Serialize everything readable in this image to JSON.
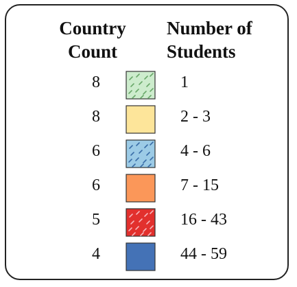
{
  "legend": {
    "header_count": "Country\nCount",
    "header_students": "Number of\nStudents",
    "rows": [
      {
        "count": "8",
        "range": "1",
        "fill": "#cdeccd",
        "pattern": "hatch",
        "hatch_color": "#6aa86a"
      },
      {
        "count": "8",
        "range": "2 - 3",
        "fill": "#fde59a",
        "pattern": "none"
      },
      {
        "count": "6",
        "range": "4 - 6",
        "fill": "#9ccbe6",
        "pattern": "hatch",
        "hatch_color": "#3a6ea8"
      },
      {
        "count": "6",
        "range": "7 - 15",
        "fill": "#fb9759",
        "pattern": "none"
      },
      {
        "count": "5",
        "range": "16 - 43",
        "fill": "#e2302d",
        "pattern": "hatch",
        "hatch_color": "#f7b3ba"
      },
      {
        "count": "4",
        "range": "44 - 59",
        "fill": "#4472b6",
        "pattern": "none"
      }
    ]
  }
}
